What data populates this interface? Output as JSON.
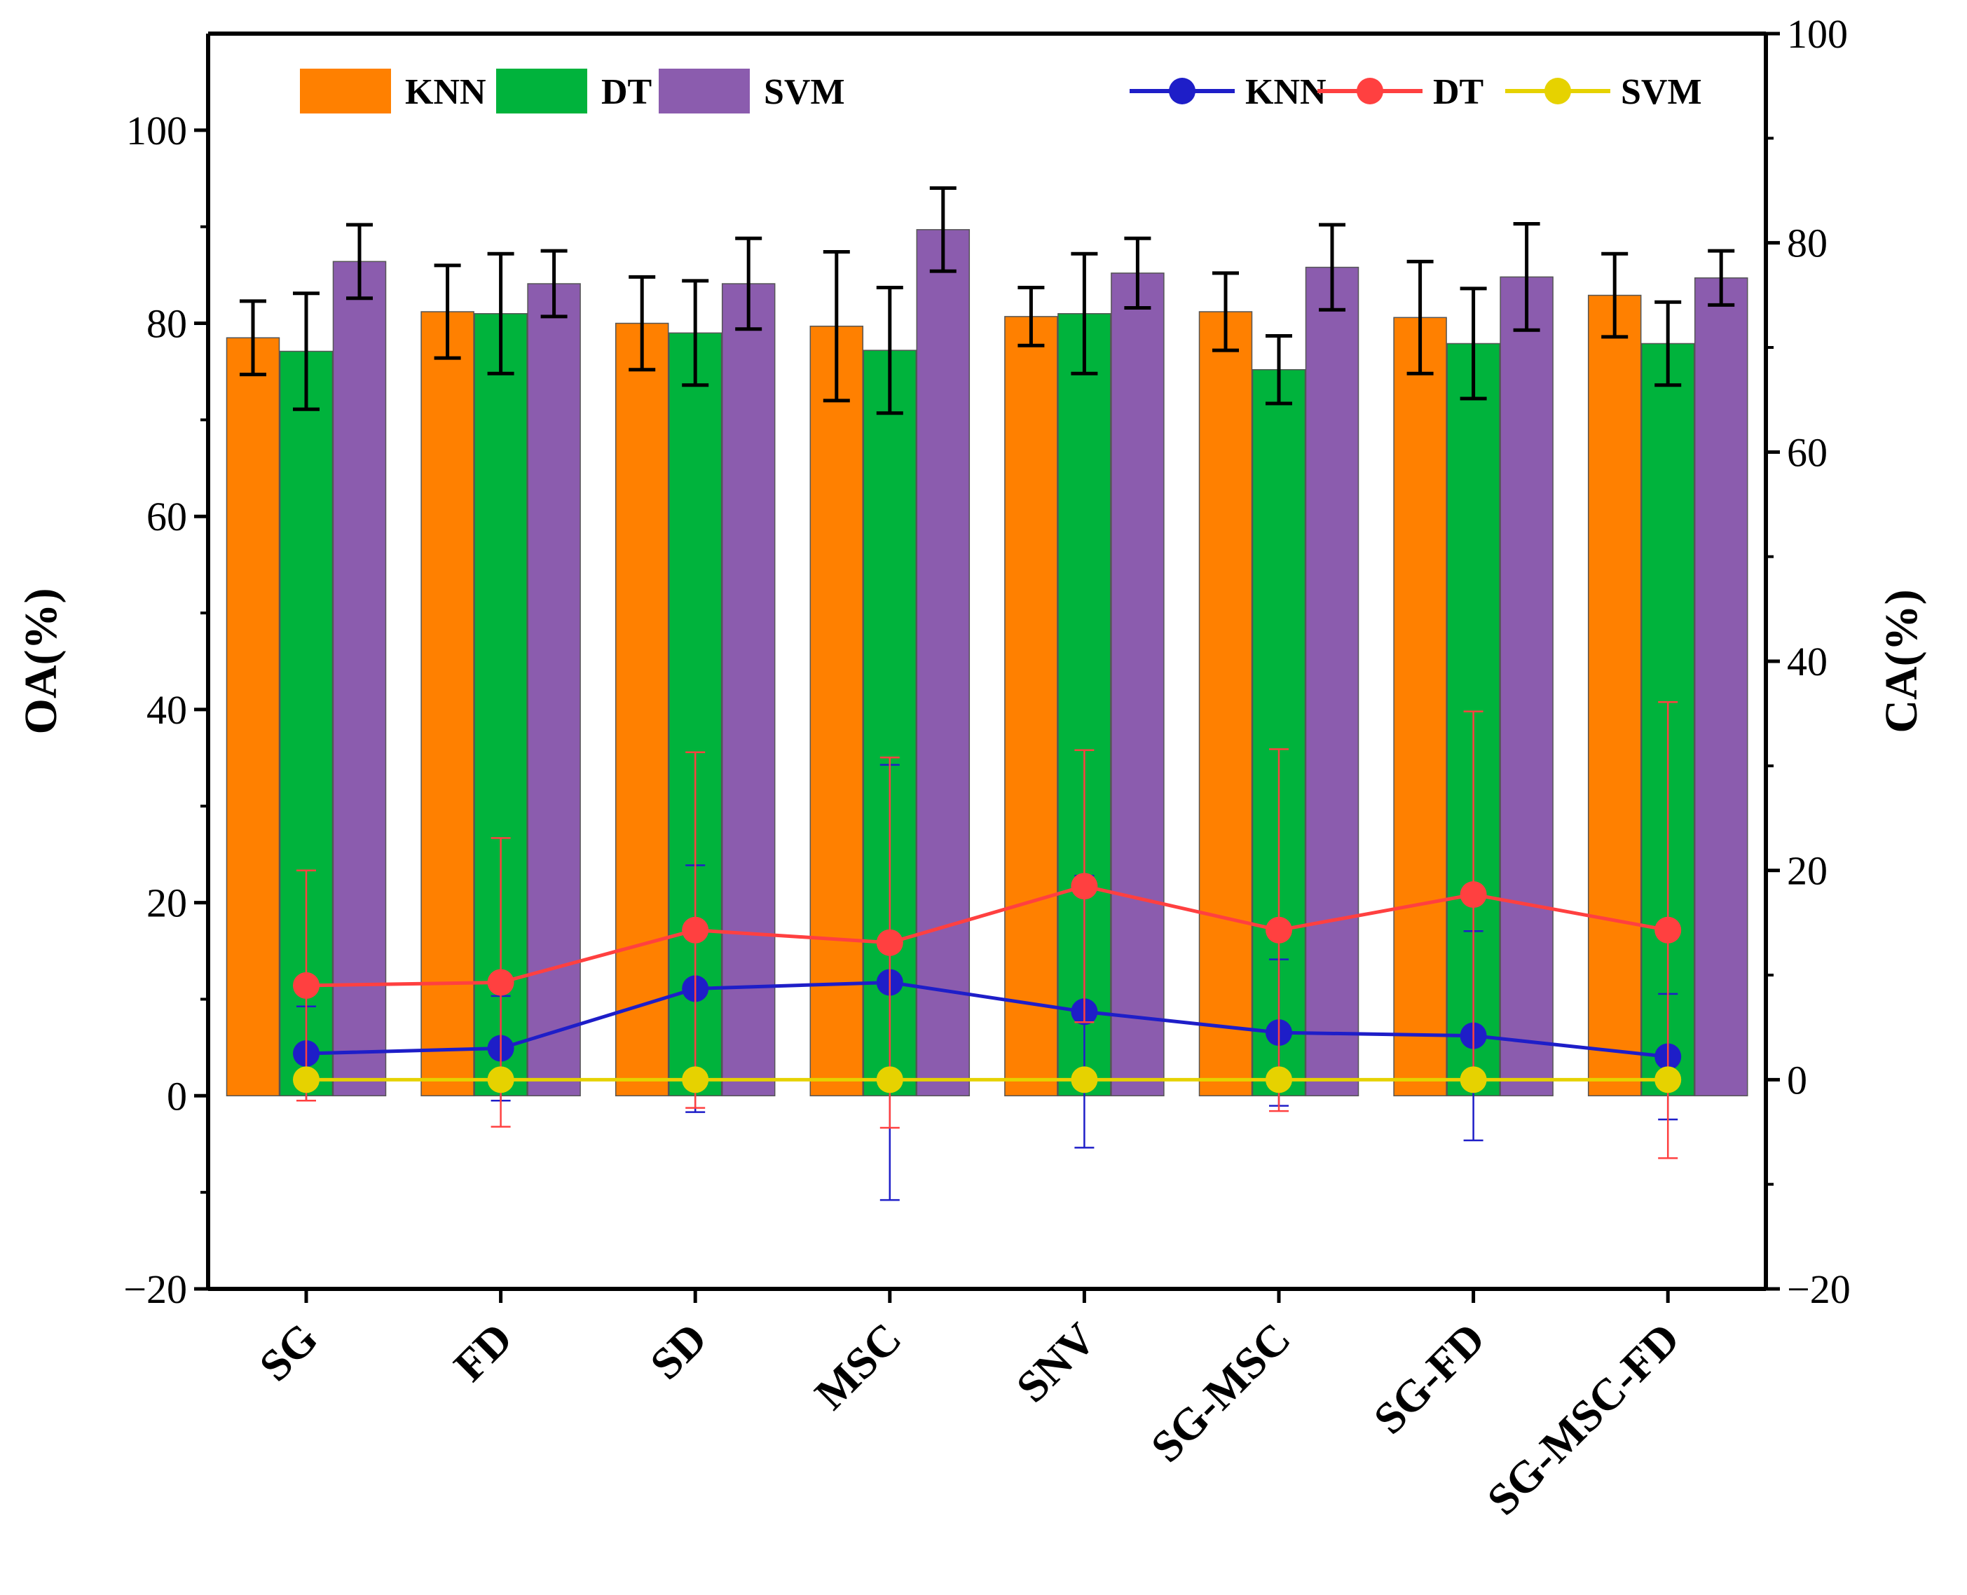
{
  "chart_data": {
    "type": "bar",
    "categories": [
      "SG",
      "FD",
      "SD",
      "MSC",
      "SNV",
      "SG-MSC",
      "SG-FD",
      "SG-MSC-FD"
    ],
    "left_axis": {
      "label": "OA(%)",
      "range": [
        -20,
        110
      ],
      "ticks": [
        -20,
        0,
        20,
        40,
        60,
        80,
        100
      ]
    },
    "right_axis": {
      "label": "CA(%)",
      "range": [
        -20,
        100
      ],
      "ticks": [
        -20,
        0,
        20,
        40,
        60,
        80,
        100
      ]
    },
    "bar_series": [
      {
        "name": "KNN",
        "color": "#FF8000",
        "values": [
          78.5,
          81.2,
          80.0,
          79.7,
          80.7,
          81.2,
          80.6,
          82.9
        ],
        "errors": [
          3.8,
          4.8,
          4.8,
          7.7,
          3.0,
          4.0,
          5.8,
          4.3
        ]
      },
      {
        "name": "DT",
        "color": "#00B33C",
        "values": [
          77.1,
          81.0,
          79.0,
          77.2,
          81.0,
          75.2,
          77.9,
          77.9
        ],
        "errors": [
          6.0,
          6.2,
          5.4,
          6.5,
          6.2,
          3.5,
          5.7,
          4.3
        ]
      },
      {
        "name": "SVM",
        "color": "#8B5CAE",
        "values": [
          86.4,
          84.1,
          84.1,
          89.7,
          85.2,
          85.8,
          84.8,
          84.7
        ],
        "errors": [
          3.8,
          3.4,
          4.7,
          4.3,
          3.6,
          4.4,
          5.5,
          2.8
        ]
      }
    ],
    "line_series": [
      {
        "name": "KNN",
        "color": "#1E1EC8",
        "values": [
          2.5,
          3.0,
          8.7,
          9.3,
          6.5,
          4.5,
          4.2,
          2.2
        ],
        "errors": [
          4.5,
          5.0,
          11.8,
          20.8,
          13.0,
          7.0,
          10.0,
          6.0
        ]
      },
      {
        "name": "DT",
        "color": "#FF4040",
        "values": [
          9.0,
          9.3,
          14.3,
          13.1,
          18.5,
          14.3,
          17.7,
          14.3
        ],
        "errors": [
          11.0,
          13.8,
          17.0,
          17.7,
          13.0,
          17.3,
          17.5,
          21.8
        ]
      },
      {
        "name": "SVM",
        "color": "#E6D200",
        "values": [
          0,
          0,
          0,
          0,
          0,
          0,
          0,
          0
        ],
        "errors": [
          0,
          0,
          0,
          0,
          0,
          0,
          0,
          0
        ]
      }
    ],
    "grid": false
  }
}
